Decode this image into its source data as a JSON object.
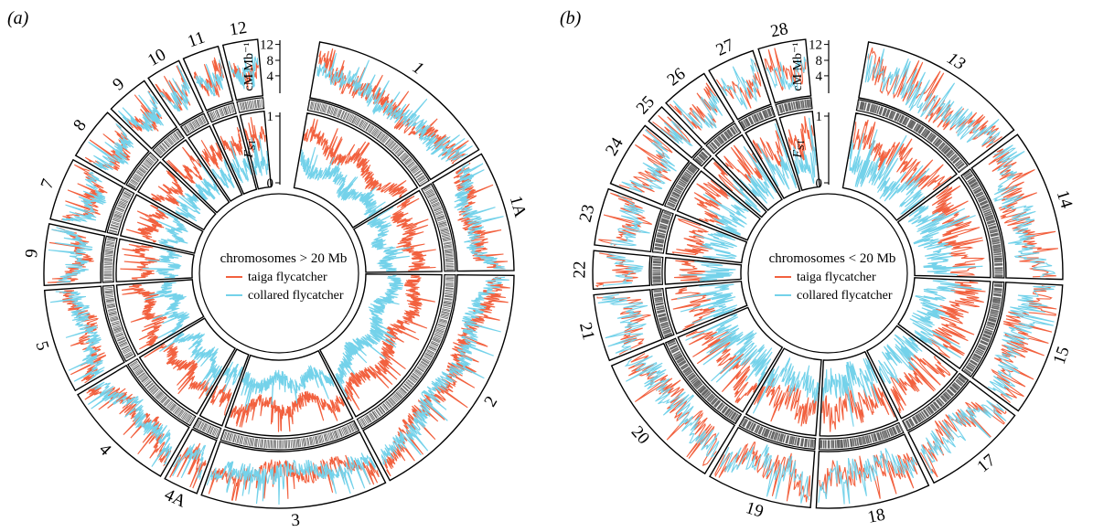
{
  "colors": {
    "taiga": "#f2613f",
    "collared": "#74d2ea",
    "frame": "#000000",
    "marker": "#666666"
  },
  "chart_data": [
    {
      "type": "circular-line",
      "panel_label": "(a)",
      "legend": {
        "title": "chromosomes > 20 Mb",
        "entries": [
          "taiga flycatcher",
          "collared flycatcher"
        ]
      },
      "recombination_axis": {
        "label": "cM Mb⁻¹",
        "ticks": [
          "12",
          "8",
          "4"
        ]
      },
      "fst_axis": {
        "label_main": "F",
        "label_sub": "ST",
        "ticks": [
          "1",
          "0"
        ]
      },
      "series": [
        {
          "name": "taiga flycatcher",
          "color": "taiga"
        },
        {
          "name": "collared flycatcher",
          "color": "collared"
        }
      ],
      "chromosomes": [
        {
          "label": "1",
          "size": 118
        },
        {
          "label": "1A",
          "size": 73
        },
        {
          "label": "2",
          "size": 150
        },
        {
          "label": "3",
          "size": 113
        },
        {
          "label": "4A",
          "size": 21
        },
        {
          "label": "4",
          "size": 70
        },
        {
          "label": "5",
          "size": 63
        },
        {
          "label": "9",
          "size": 37
        },
        {
          "label": "7",
          "size": 38
        },
        {
          "label": "8",
          "size": 32
        },
        {
          "label": "9",
          "size": 26
        },
        {
          "label": "10",
          "size": 21
        },
        {
          "label": "11",
          "size": 22
        },
        {
          "label": "12",
          "size": 21
        }
      ]
    },
    {
      "type": "circular-line",
      "panel_label": "(b)",
      "legend": {
        "title": "chromosomes < 20 Mb",
        "entries": [
          "taiga flycatcher",
          "collared flycatcher"
        ]
      },
      "recombination_axis": {
        "label": "cM Mb⁻¹",
        "ticks": [
          "12",
          "8",
          "4"
        ]
      },
      "fst_axis": {
        "label_main": "F",
        "label_sub": "ST",
        "ticks": [
          "1",
          "0"
        ]
      },
      "series": [
        {
          "name": "taiga flycatcher",
          "color": "taiga"
        },
        {
          "name": "collared flycatcher",
          "color": "collared"
        }
      ],
      "chromosomes": [
        {
          "label": "13",
          "size": 18
        },
        {
          "label": "14",
          "size": 16
        },
        {
          "label": "15",
          "size": 14
        },
        {
          "label": "17",
          "size": 11
        },
        {
          "label": "18",
          "size": 12
        },
        {
          "label": "19",
          "size": 11
        },
        {
          "label": "20",
          "size": 15
        },
        {
          "label": "21",
          "size": 7
        },
        {
          "label": "22",
          "size": 4
        },
        {
          "label": "23",
          "size": 6
        },
        {
          "label": "24",
          "size": 7
        },
        {
          "label": "25",
          "size": 2
        },
        {
          "label": "26",
          "size": 5
        },
        {
          "label": "27",
          "size": 5
        },
        {
          "label": "28",
          "size": 5
        }
      ]
    }
  ]
}
